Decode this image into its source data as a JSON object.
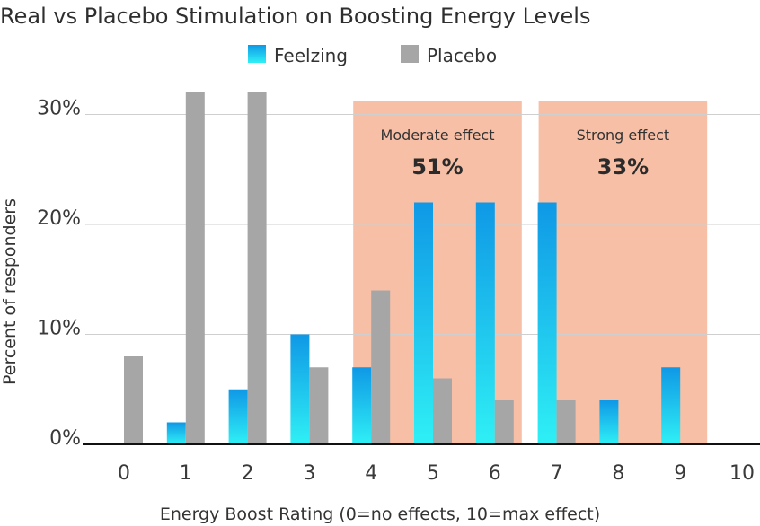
{
  "chart_data": {
    "type": "bar",
    "title": "Real vs Placebo Stimulation on Boosting Energy Levels",
    "xlabel": "Energy Boost Rating (0=no effects, 10=max effect)",
    "ylabel": "Percent of responders",
    "categories": [
      "0",
      "1",
      "2",
      "3",
      "4",
      "5",
      "6",
      "7",
      "8",
      "9",
      "10"
    ],
    "series": [
      {
        "name": "Feelzing",
        "values": [
          0,
          2,
          5,
          10,
          7,
          22,
          22,
          22,
          4,
          7,
          0
        ]
      },
      {
        "name": "Placebo",
        "values": [
          8,
          32,
          32,
          7,
          14,
          6,
          4,
          4,
          0,
          0,
          0
        ]
      }
    ],
    "yticks": [
      "0%",
      "10%",
      "20%",
      "30%"
    ],
    "ytick_values": [
      0,
      10,
      20,
      30
    ],
    "ylim": [
      0,
      32
    ],
    "grid": true,
    "legend_position": "top",
    "zones": [
      {
        "label": "Moderate effect",
        "value": "51%",
        "from_category": "4",
        "to_category": "6"
      },
      {
        "label": "Strong effect",
        "value": "33%",
        "from_category": "7",
        "to_category": "9"
      }
    ]
  },
  "colors": {
    "feelzing_top": "#0f98e6",
    "feelzing_bottom": "#2ff0f5",
    "placebo": "#a6a6a6",
    "zone": "#f7c0a6",
    "grid": "#cfcfcf",
    "axis": "#111111"
  }
}
